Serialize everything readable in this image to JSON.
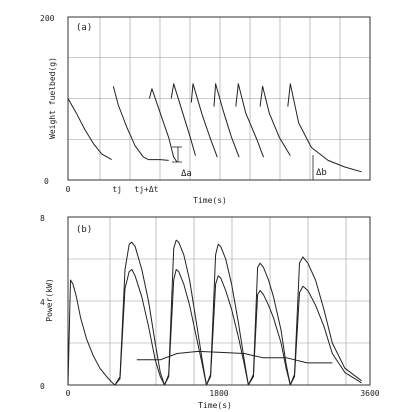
{
  "chart_data": [
    {
      "type": "line",
      "panel_label": "(a)",
      "ylabel": "Weight fuelbed(g)",
      "xlabel": "Time(s)",
      "ylim": [
        0,
        200
      ],
      "y_ticks": [
        "0",
        "200"
      ],
      "x_tick_labels": [
        {
          "text": "0",
          "x": 0
        },
        {
          "text": "tj",
          "x": 585
        },
        {
          "text": "tj+Δt",
          "x": 935
        }
      ],
      "grid": true,
      "annotations": [
        "Δa",
        "Δb"
      ],
      "series": [
        {
          "x": [
            0,
            100,
            200,
            300,
            400,
            520
          ],
          "values": [
            100,
            82,
            62,
            45,
            32,
            25
          ]
        },
        {
          "x": [
            540,
            600,
            700,
            800,
            900,
            960
          ],
          "values": [
            115,
            92,
            65,
            42,
            28,
            25
          ]
        },
        {
          "x": [
            960,
            1100,
            1200
          ],
          "values": [
            25,
            25,
            24
          ]
        },
        {
          "x": [
            970,
            1000,
            1100,
            1200,
            1260,
            1300
          ],
          "values": [
            100,
            112,
            82,
            52,
            28,
            22
          ]
        },
        {
          "x": [
            1230,
            1260,
            1350,
            1450,
            1520
          ],
          "values": [
            100,
            118,
            88,
            55,
            30
          ]
        },
        {
          "x": [
            1470,
            1490,
            1600,
            1700,
            1780
          ],
          "values": [
            95,
            118,
            80,
            50,
            28
          ]
        },
        {
          "x": [
            1740,
            1760,
            1850,
            1950,
            2040
          ],
          "values": [
            90,
            118,
            85,
            52,
            28
          ]
        },
        {
          "x": [
            2000,
            2030,
            2120,
            2250,
            2330
          ],
          "values": [
            90,
            118,
            82,
            50,
            28
          ]
        },
        {
          "x": [
            2290,
            2320,
            2400,
            2520,
            2650
          ],
          "values": [
            90,
            115,
            82,
            52,
            30
          ]
        },
        {
          "x": [
            2620,
            2650,
            2750,
            2900,
            3100,
            3300,
            3500
          ],
          "values": [
            90,
            118,
            70,
            40,
            24,
            16,
            10
          ]
        }
      ]
    },
    {
      "type": "line",
      "panel_label": "(b)",
      "ylabel": "Power(kW)",
      "xlabel": "Time(s)",
      "xlim": [
        0,
        3600
      ],
      "ylim": [
        0,
        8
      ],
      "y_ticks": [
        "0",
        "4",
        "8"
      ],
      "x_ticks": [
        "0",
        "1800",
        "3600"
      ],
      "grid": true,
      "series": [
        {
          "x": [
            0,
            30,
            60,
            100,
            150,
            220,
            300,
            380,
            460,
            530,
            560
          ],
          "values": [
            0,
            5,
            4.8,
            4.2,
            3.2,
            2.2,
            1.4,
            0.8,
            0.4,
            0.1,
            0
          ]
        },
        {
          "x": [
            560,
            620,
            680,
            730,
            760,
            800,
            880,
            960,
            1040,
            1100,
            1150
          ],
          "values": [
            0,
            0.4,
            5.5,
            6.7,
            6.8,
            6.6,
            5.5,
            4.0,
            2.0,
            0.6,
            0
          ]
        },
        {
          "x": [
            560,
            620,
            680,
            730,
            760,
            800,
            880,
            960,
            1040,
            1100,
            1150
          ],
          "values": [
            0,
            0.3,
            4.6,
            5.4,
            5.5,
            5.2,
            4.2,
            2.8,
            1.2,
            0.4,
            0
          ]
        },
        {
          "x": [
            1150,
            1200,
            1260,
            1290,
            1320,
            1380,
            1450,
            1530,
            1600,
            1650
          ],
          "values": [
            0,
            0.5,
            6.5,
            6.9,
            6.8,
            6.2,
            5.0,
            3.0,
            1.2,
            0
          ]
        },
        {
          "x": [
            1150,
            1200,
            1260,
            1290,
            1320,
            1380,
            1450,
            1530,
            1600,
            1650
          ],
          "values": [
            0,
            0.4,
            5.0,
            5.5,
            5.4,
            4.8,
            3.8,
            2.3,
            1.0,
            0
          ]
        },
        {
          "x": [
            1650,
            1700,
            1760,
            1790,
            1820,
            1880,
            1950,
            2030,
            2100,
            2150
          ],
          "values": [
            0,
            0.5,
            6.2,
            6.7,
            6.6,
            6.0,
            4.8,
            3.0,
            1.2,
            0
          ]
        },
        {
          "x": [
            1650,
            1700,
            1760,
            1790,
            1820,
            1880,
            1950,
            2030,
            2100,
            2150
          ],
          "values": [
            0,
            0.4,
            4.8,
            5.2,
            5.1,
            4.5,
            3.6,
            2.3,
            1.0,
            0
          ]
        },
        {
          "x": [
            2150,
            2210,
            2260,
            2290,
            2330,
            2390,
            2450,
            2540,
            2600,
            2650
          ],
          "values": [
            0,
            0.5,
            5.6,
            5.8,
            5.6,
            5.0,
            4.2,
            2.6,
            1.0,
            0
          ]
        },
        {
          "x": [
            2150,
            2210,
            2260,
            2290,
            2330,
            2390,
            2450,
            2540,
            2600,
            2650
          ],
          "values": [
            0,
            0.4,
            4.3,
            4.5,
            4.3,
            3.8,
            3.2,
            2.0,
            0.8,
            0
          ]
        },
        {
          "x": [
            2650,
            2700,
            2760,
            2800,
            2860,
            2950,
            3050,
            3150,
            3300,
            3500
          ],
          "values": [
            0,
            0.5,
            5.8,
            6.1,
            5.8,
            5.0,
            3.6,
            2.0,
            0.8,
            0.2
          ]
        },
        {
          "x": [
            2650,
            2700,
            2760,
            2800,
            2860,
            2950,
            3050,
            3150,
            3300,
            3500
          ],
          "values": [
            0,
            0.4,
            4.4,
            4.7,
            4.5,
            3.8,
            2.8,
            1.5,
            0.6,
            0.1
          ]
        },
        {
          "x": [
            820,
            1100,
            1300,
            1550,
            1820,
            2100,
            2320,
            2600,
            2850,
            3150
          ],
          "values": [
            1.2,
            1.2,
            1.5,
            1.6,
            1.55,
            1.5,
            1.3,
            1.3,
            1.05,
            1.05
          ]
        }
      ]
    }
  ]
}
